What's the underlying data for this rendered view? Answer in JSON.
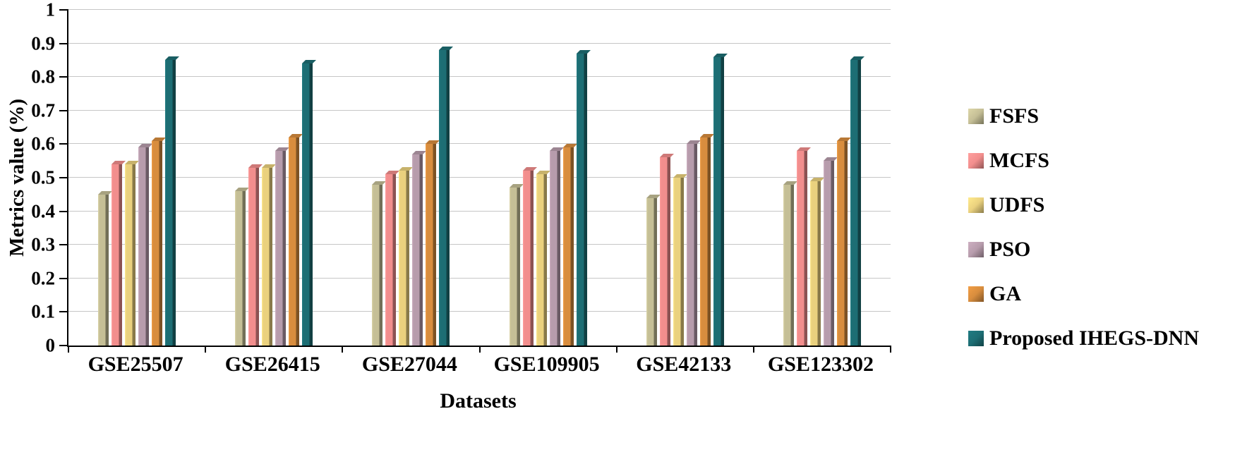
{
  "chart_data": {
    "type": "bar",
    "title": "",
    "xlabel": "Datasets",
    "ylabel": "Metrics value (%)",
    "ylim": [
      0,
      1
    ],
    "ytick_step": 0.1,
    "grid": true,
    "legend_position": "right",
    "categories": [
      "GSE25507",
      "GSE26415",
      "GSE27044",
      "GSE109905",
      "GSE42133",
      "GSE123302"
    ],
    "series": [
      {
        "name": "FSFS",
        "color": "#c5bf96",
        "values": [
          0.45,
          0.46,
          0.48,
          0.47,
          0.44,
          0.48
        ]
      },
      {
        "name": "MCFS",
        "color": "#f28e8d",
        "values": [
          0.54,
          0.53,
          0.51,
          0.52,
          0.56,
          0.58
        ]
      },
      {
        "name": "UDFS",
        "color": "#ead17e",
        "values": [
          0.54,
          0.53,
          0.52,
          0.51,
          0.5,
          0.49
        ]
      },
      {
        "name": "PSO",
        "color": "#b79cac",
        "values": [
          0.59,
          0.58,
          0.57,
          0.58,
          0.6,
          0.55
        ]
      },
      {
        "name": "GA",
        "color": "#d88d3e",
        "values": [
          0.61,
          0.62,
          0.6,
          0.59,
          0.62,
          0.61
        ]
      },
      {
        "name": "Proposed IHEGS-DNN",
        "color": "#1d6e74",
        "values": [
          0.85,
          0.84,
          0.88,
          0.87,
          0.86,
          0.85
        ]
      }
    ]
  }
}
